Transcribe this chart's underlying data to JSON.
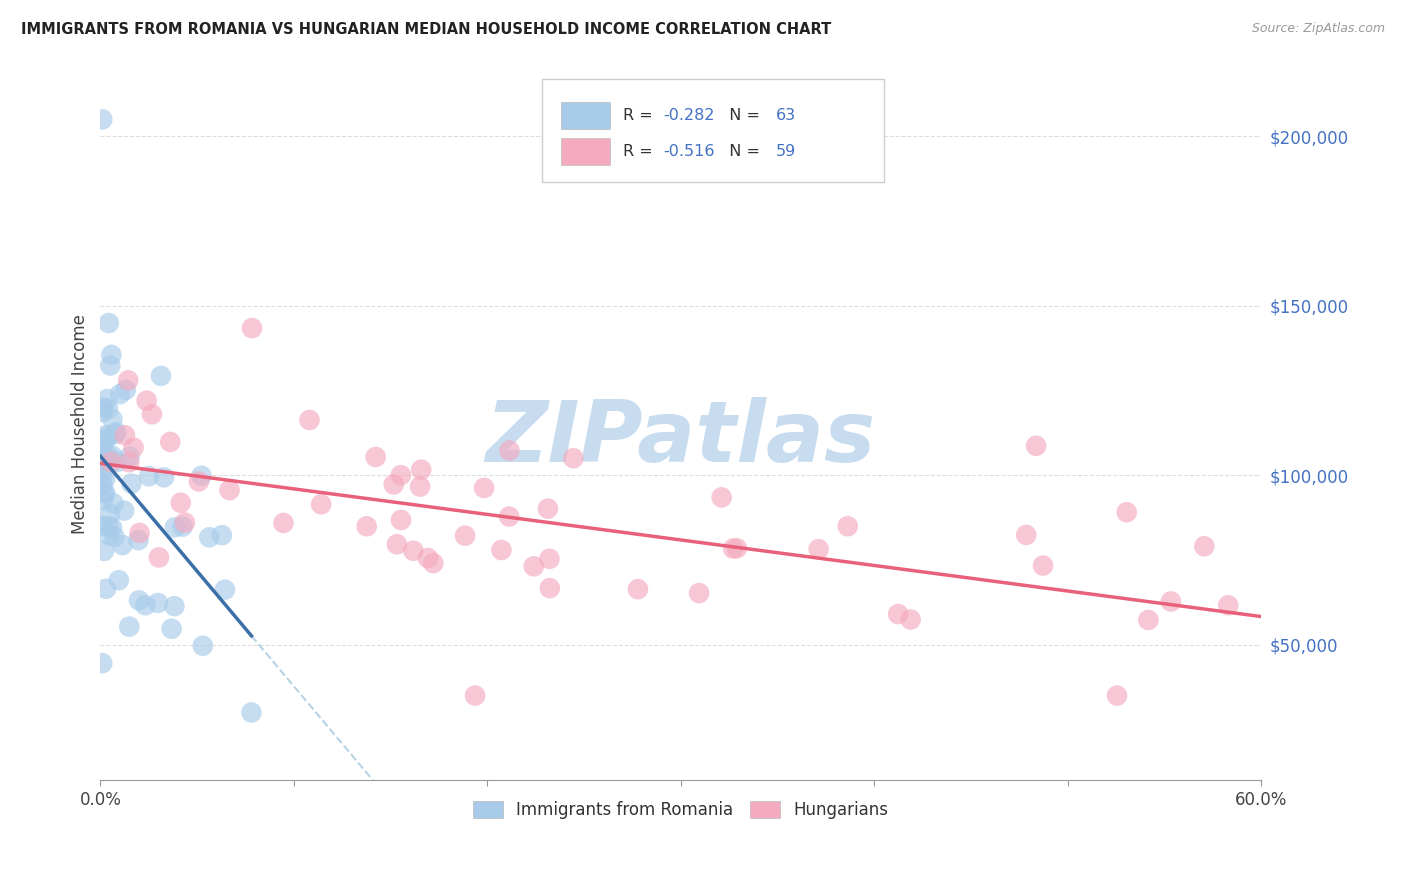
{
  "title": "IMMIGRANTS FROM ROMANIA VS HUNGARIAN MEDIAN HOUSEHOLD INCOME CORRELATION CHART",
  "source": "Source: ZipAtlas.com",
  "ylabel": "Median Household Income",
  "right_yticks": [
    50000,
    100000,
    150000,
    200000
  ],
  "right_ytick_labels": [
    "$50,000",
    "$100,000",
    "$150,000",
    "$200,000"
  ],
  "xmin": 0.0,
  "xmax": 0.6,
  "ymin": 10000,
  "ymax": 220000,
  "blue_R": -0.282,
  "blue_N": 63,
  "pink_R": -0.516,
  "pink_N": 59,
  "blue_color": "#A8CBEA",
  "pink_color": "#F4AABF",
  "blue_line_color": "#3B6FA8",
  "pink_line_color": "#E8607A",
  "dash_line_color": "#AACCE0",
  "watermark_text": "ZIPatlas",
  "watermark_color": "#C8DCF0",
  "legend_label_blue": "Immigrants from Romania",
  "legend_label_pink": "Hungarians"
}
